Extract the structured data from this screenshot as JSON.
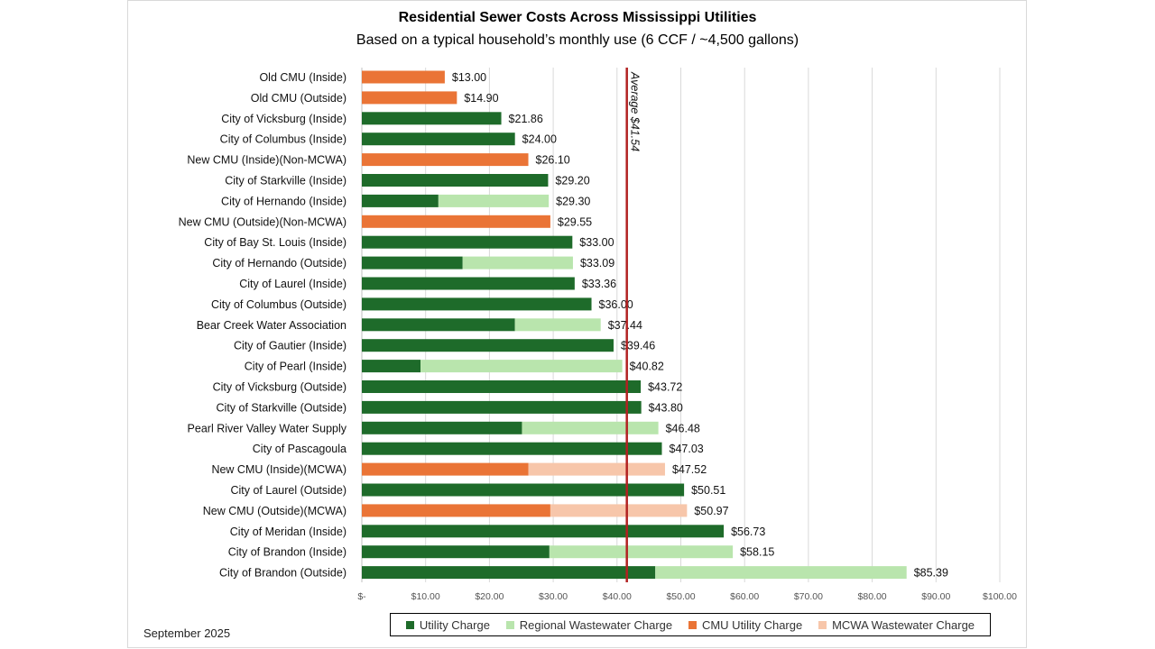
{
  "chart_data": {
    "type": "bar",
    "orientation": "horizontal",
    "stacked": true,
    "title": "Residential Sewer Costs Across Mississippi Utilities",
    "subtitle": "Based on a typical household’s monthly use (6 CCF / ~4,500 gallons)",
    "xlim": [
      0,
      100
    ],
    "x_ticks": [
      "$-",
      "$10.00",
      "$20.00",
      "$30.00",
      "$40.00",
      "$50.00",
      "$60.00",
      "$70.00",
      "$80.00",
      "$90.00",
      "$100.00"
    ],
    "grid": "vertical",
    "legend_position": "bottom",
    "average": {
      "value": 41.54,
      "label": "Average $41.54",
      "color": "#b22222"
    },
    "series": [
      {
        "name": "Utility Charge",
        "color": "#1e6b2a"
      },
      {
        "name": "Regional Wastewater Charge",
        "color": "#b9e5ad"
      },
      {
        "name": "CMU Utility Charge",
        "color": "#ea7436"
      },
      {
        "name": "MCWA Wastewater Charge",
        "color": "#f7c6aa"
      }
    ],
    "rows": [
      {
        "label": "Old CMU (Inside)",
        "type": "cmu",
        "base": 13.0,
        "regional": 0,
        "total_label": "$13.00"
      },
      {
        "label": "Old CMU (Outside)",
        "type": "cmu",
        "base": 14.9,
        "regional": 0,
        "total_label": "$14.90"
      },
      {
        "label": "City of Vicksburg (Inside)",
        "type": "utility",
        "base": 21.86,
        "regional": 0,
        "total_label": "$21.86"
      },
      {
        "label": "City of Columbus (Inside)",
        "type": "utility",
        "base": 24.0,
        "regional": 0,
        "total_label": "$24.00"
      },
      {
        "label": "New CMU (Inside)(Non-MCWA)",
        "type": "cmu",
        "base": 26.1,
        "regional": 0,
        "total_label": "$26.10"
      },
      {
        "label": "City of Starkville (Inside)",
        "type": "utility",
        "base": 29.2,
        "regional": 0,
        "total_label": "$29.20"
      },
      {
        "label": "City of Hernando (Inside)",
        "type": "utility",
        "base": 12.0,
        "regional": 17.3,
        "total_label": "$29.30"
      },
      {
        "label": "New CMU (Outside)(Non-MCWA)",
        "type": "cmu",
        "base": 29.55,
        "regional": 0,
        "total_label": "$29.55"
      },
      {
        "label": "City of Bay St. Louis (Inside)",
        "type": "utility",
        "base": 33.0,
        "regional": 0,
        "total_label": "$33.00"
      },
      {
        "label": "City of Hernando (Outside)",
        "type": "utility",
        "base": 15.8,
        "regional": 17.29,
        "total_label": "$33.09"
      },
      {
        "label": "City of Laurel (Inside)",
        "type": "utility",
        "base": 33.36,
        "regional": 0,
        "total_label": "$33.36"
      },
      {
        "label": "City of Columbus (Outside)",
        "type": "utility",
        "base": 36.0,
        "regional": 0,
        "total_label": "$36.00"
      },
      {
        "label": "Bear Creek Water Association",
        "type": "utility",
        "base": 24.0,
        "regional": 13.44,
        "total_label": "$37.44"
      },
      {
        "label": "City of Gautier (Inside)",
        "type": "utility",
        "base": 39.46,
        "regional": 0,
        "total_label": "$39.46"
      },
      {
        "label": "City of Pearl (Inside)",
        "type": "utility",
        "base": 9.2,
        "regional": 31.62,
        "total_label": "$40.82"
      },
      {
        "label": "City of Vicksburg (Outside)",
        "type": "utility",
        "base": 43.72,
        "regional": 0,
        "total_label": "$43.72"
      },
      {
        "label": "City of Starkville (Outside)",
        "type": "utility",
        "base": 43.8,
        "regional": 0,
        "total_label": "$43.80"
      },
      {
        "label": "Pearl River Valley Water Supply",
        "type": "utility",
        "base": 25.1,
        "regional": 21.38,
        "total_label": "$46.48"
      },
      {
        "label": "City of Pascagoula",
        "type": "utility",
        "base": 47.03,
        "regional": 0,
        "total_label": "$47.03"
      },
      {
        "label": "New CMU (Inside)(MCWA)",
        "type": "cmu",
        "base": 26.1,
        "regional": 21.42,
        "total_label": "$47.52"
      },
      {
        "label": "City of Laurel (Outside)",
        "type": "utility",
        "base": 50.51,
        "regional": 0,
        "total_label": "$50.51"
      },
      {
        "label": "New CMU (Outside)(MCWA)",
        "type": "cmu",
        "base": 29.55,
        "regional": 21.42,
        "total_label": "$50.97"
      },
      {
        "label": "City of Meridan (Inside)",
        "type": "utility",
        "base": 56.73,
        "regional": 0,
        "total_label": "$56.73"
      },
      {
        "label": "City of Brandon (Inside)",
        "type": "utility",
        "base": 29.4,
        "regional": 28.75,
        "total_label": "$58.15"
      },
      {
        "label": "City of Brandon (Outside)",
        "type": "utility",
        "base": 46.0,
        "regional": 39.39,
        "total_label": "$85.39"
      }
    ]
  },
  "footnote": "September 2025"
}
